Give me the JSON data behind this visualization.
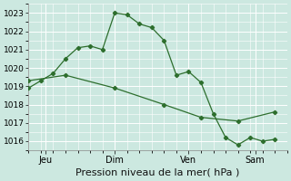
{
  "xlabel": "Pression niveau de la mer( hPa )",
  "bg_color": "#cce8e0",
  "grid_color": "#ffffff",
  "line_color": "#2d6e2d",
  "ylim": [
    1015.5,
    1023.5
  ],
  "yticks": [
    1016,
    1017,
    1018,
    1019,
    1020,
    1021,
    1022,
    1023
  ],
  "xlim": [
    0,
    10.5
  ],
  "series1_x": [
    0,
    0.5,
    1.0,
    1.5,
    2.0,
    2.5,
    3.0,
    3.5,
    4.0,
    4.5,
    5.0,
    5.5,
    6.0,
    6.5,
    7.0,
    7.5,
    8.0,
    8.5,
    9.0,
    9.5,
    10.0
  ],
  "series1_y": [
    1018.9,
    1019.3,
    1019.7,
    1020.5,
    1021.1,
    1021.2,
    1021.0,
    1023.0,
    1022.9,
    1022.4,
    1022.2,
    1021.5,
    1019.6,
    1019.8,
    1019.2,
    1017.5,
    1016.2,
    1015.8,
    1016.2,
    1016.0,
    1016.1
  ],
  "series2_x": [
    0,
    1.5,
    3.5,
    5.5,
    7.0,
    8.5,
    10.0
  ],
  "series2_y": [
    1019.3,
    1019.6,
    1018.9,
    1018.0,
    1017.3,
    1017.1,
    1017.6
  ],
  "xtick_positions": [
    0.7,
    3.5,
    6.5,
    9.2
  ],
  "xtick_labels": [
    "Jeu",
    "Dim",
    "Ven",
    "Sam"
  ],
  "xlabel_fontsize": 8,
  "ytick_fontsize": 6.5,
  "xtick_fontsize": 7
}
